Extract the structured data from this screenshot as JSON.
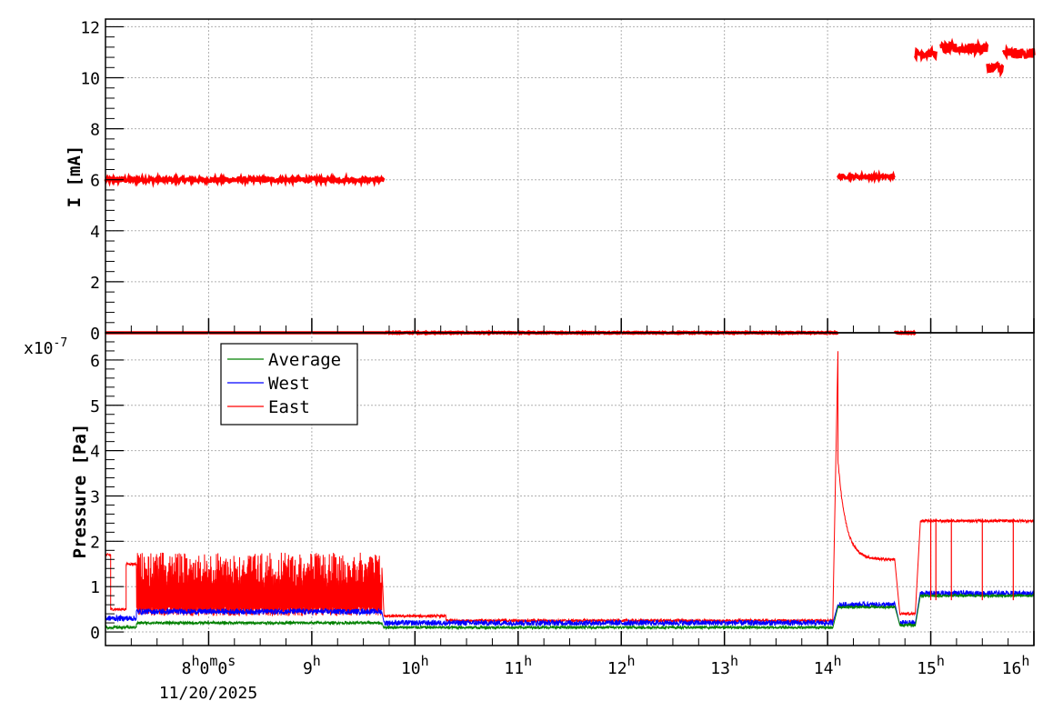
{
  "chart_data": [
    {
      "type": "scatter",
      "ylabel": "I [mA]",
      "ylim": [
        0,
        12.3
      ],
      "yticks": [
        "0",
        "2",
        "4",
        "6",
        "8",
        "10",
        "12"
      ],
      "xlim": [
        7.0,
        16.0
      ],
      "grid": true,
      "series": [
        {
          "color": "#ff0000",
          "segments": [
            {
              "x_start": 7.0,
              "x_end": 9.7,
              "y_mean": 6.0,
              "y_noise": 0.08
            },
            {
              "x_start": 9.7,
              "x_end": 14.1,
              "y_mean": 0.0,
              "y_noise": 0.02
            },
            {
              "x_start": 14.1,
              "x_end": 14.65,
              "y_mean": 6.12,
              "y_noise": 0.06
            },
            {
              "x_start": 14.65,
              "x_end": 14.85,
              "y_mean": 0.0,
              "y_noise": 0.02
            },
            {
              "x_start": 14.85,
              "x_end": 15.05,
              "y_mean": 10.95,
              "y_noise": 0.15
            },
            {
              "x_start": 15.1,
              "x_end": 15.55,
              "y_mean": 11.15,
              "y_noise": 0.2
            },
            {
              "x_start": 15.55,
              "x_end": 15.7,
              "y_mean": 10.4,
              "y_noise": 0.2
            },
            {
              "x_start": 15.7,
              "x_end": 16.0,
              "y_mean": 10.95,
              "y_noise": 0.2
            }
          ],
          "baseline": {
            "x_start": 7.0,
            "x_end": 9.7,
            "y": 0.0
          }
        }
      ]
    },
    {
      "type": "line",
      "ylabel": "Pressure [Pa]",
      "y_multiplier": "x10",
      "y_exponent": "-7",
      "ylim": [
        -0.3,
        6.6
      ],
      "yticks": [
        "0",
        "1",
        "2",
        "3",
        "4",
        "5",
        "6"
      ],
      "xlim": [
        7.0,
        16.0
      ],
      "xticks": [
        {
          "x": 8,
          "hour": "8",
          "h": "h",
          "rest": "0",
          "m": "m",
          "rest2": "0",
          "s": "s"
        },
        {
          "x": 9,
          "hour": "9",
          "h": "h"
        },
        {
          "x": 10,
          "hour": "10",
          "h": "h"
        },
        {
          "x": 11,
          "hour": "11",
          "h": "h"
        },
        {
          "x": 12,
          "hour": "12",
          "h": "h"
        },
        {
          "x": 13,
          "hour": "13",
          "h": "h"
        },
        {
          "x": 14,
          "hour": "14",
          "h": "h"
        },
        {
          "x": 15,
          "hour": "15",
          "h": "h"
        },
        {
          "x": 16,
          "hour": "16",
          "h": "h"
        }
      ],
      "date_label": "11/20/2025",
      "legend_position": "top-left",
      "grid": true,
      "series": [
        {
          "name": "Average",
          "color": "#008000"
        },
        {
          "name": "West",
          "color": "#0000ff"
        },
        {
          "name": "East",
          "color": "#ff0000"
        }
      ],
      "east_levels": [
        {
          "x_start": 7.0,
          "x_end": 7.05,
          "y": 1.7
        },
        {
          "x_start": 7.05,
          "x_end": 7.2,
          "y": 0.5
        },
        {
          "x_start": 7.2,
          "x_end": 7.3,
          "y": 1.5
        },
        {
          "x_start": 7.3,
          "x_end": 9.68,
          "y_low": 0.35,
          "y_high": 1.75
        },
        {
          "x_start": 9.7,
          "x_end": 10.3,
          "y": 0.35
        },
        {
          "x_start": 10.3,
          "x_end": 14.05,
          "y": 0.25
        },
        {
          "x_start": 14.1,
          "x_end": 14.1,
          "y": 6.2
        },
        {
          "x_start": 14.1,
          "x_end": 14.65,
          "y_decay_to": 1.6
        },
        {
          "x_start": 14.7,
          "x_end": 14.85,
          "y": 0.4
        },
        {
          "x_start": 14.9,
          "x_end": 16.0,
          "y": 2.45
        }
      ],
      "west_levels": [
        {
          "x_start": 7.0,
          "x_end": 7.3,
          "y": 0.3
        },
        {
          "x_start": 7.3,
          "x_end": 9.68,
          "y": 0.45
        },
        {
          "x_start": 9.7,
          "x_end": 14.05,
          "y": 0.2
        },
        {
          "x_start": 14.1,
          "x_end": 14.65,
          "y": 0.6
        },
        {
          "x_start": 14.7,
          "x_end": 14.85,
          "y": 0.2
        },
        {
          "x_start": 14.9,
          "x_end": 16.0,
          "y": 0.85
        }
      ],
      "average_levels": [
        {
          "x_start": 7.0,
          "x_end": 7.3,
          "y": 0.1
        },
        {
          "x_start": 7.3,
          "x_end": 9.68,
          "y": 0.2
        },
        {
          "x_start": 9.7,
          "x_end": 14.05,
          "y": 0.1
        },
        {
          "x_start": 14.1,
          "x_end": 14.65,
          "y": 0.55
        },
        {
          "x_start": 14.7,
          "x_end": 14.85,
          "y": 0.15
        },
        {
          "x_start": 14.9,
          "x_end": 16.0,
          "y": 0.8
        }
      ]
    }
  ]
}
